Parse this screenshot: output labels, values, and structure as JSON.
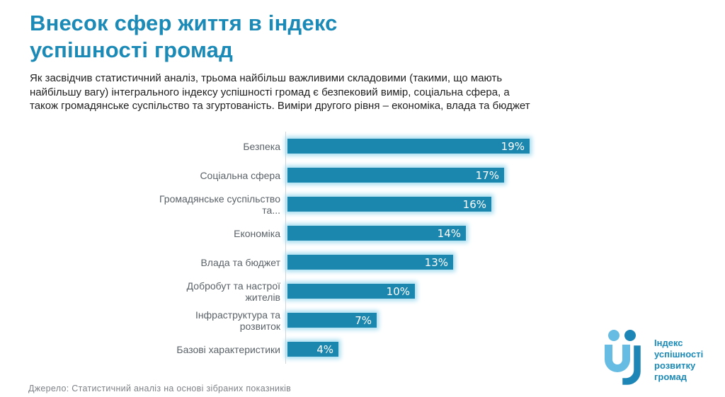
{
  "title": "Внесок сфер життя в індекс\nуспішності громад",
  "subtitle": "Як засвідчив статистичний аналіз, трьома найбільш важливими складовими (такими, що мають\nнайбільшу вагу) інтегрального індексу успішності громад є безпековий вимір, соціальна сфера, а\nтакож громадянське суспільство та згуртованість. Виміри другого рівня – економіка, влада та бюджет",
  "source": "Джерело: Статистичний аналіз на основі зібраних показників",
  "logo": {
    "lines": [
      "Індекс",
      "успішності",
      "розвитку",
      "громад"
    ]
  },
  "colors": {
    "accent_teal": "#1b8ab6",
    "bar_fill": "#1c87ae",
    "bar_glow": "#a4dcf0",
    "category_label_gray": "#5a6268",
    "source_gray": "#7e8287",
    "body_text": "#1f1f1f",
    "axis_line": "#d0d5d8",
    "logo_light_blue": "#66bce2",
    "logo_teal": "#1e86b6"
  },
  "chart_data": {
    "type": "bar",
    "orientation": "horizontal",
    "title": "",
    "xlabel": "",
    "ylabel": "",
    "xlim": [
      0,
      20
    ],
    "grid": false,
    "legend": false,
    "categories": [
      "Безпека",
      "Соціальна сфера",
      "Громадянське суспільство та...",
      "Економіка",
      "Влада та бюджет",
      "Добробут та настрої жителів",
      "Інфраструктура та розвиток",
      "Базові характеристики"
    ],
    "values": [
      19,
      17,
      16,
      14,
      13,
      10,
      7,
      4
    ],
    "labels": [
      "19%",
      "17%",
      "16%",
      "14%",
      "13%",
      "10%",
      "7%",
      "4%"
    ]
  }
}
